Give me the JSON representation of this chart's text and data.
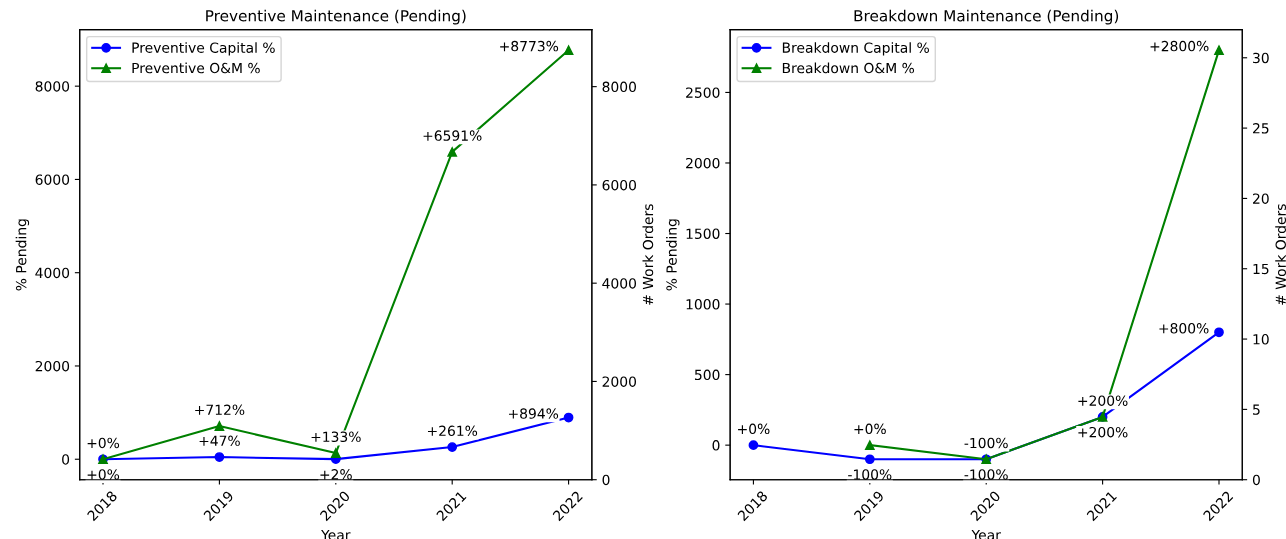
{
  "chart_data": [
    {
      "type": "line",
      "title": "Preventive Maintenance (Pending)",
      "xlabel": "Year",
      "ylabel": "% Pending",
      "y2label": "# Work Orders",
      "categories": [
        "2018",
        "2019",
        "2020",
        "2021",
        "2022"
      ],
      "series": [
        {
          "name": "Preventive Capital %",
          "color": "#0000ff",
          "marker": "circle",
          "values": [
            0,
            47,
            2,
            261,
            894
          ],
          "value_labels": [
            "+0%",
            "+47%",
            "+2%",
            "+261%",
            "+894%"
          ]
        },
        {
          "name": "Preventive O&M %",
          "color": "#008000",
          "marker": "triangle",
          "values": [
            0,
            712,
            133,
            6591,
            8773
          ],
          "value_labels": [
            "+0%",
            "+712%",
            "+133%",
            "+6591%",
            "+8773%"
          ]
        }
      ],
      "ylim": [
        -439,
        9212
      ],
      "yticks": [
        0,
        2000,
        4000,
        6000,
        8000
      ],
      "y2lim": [
        0,
        9160
      ],
      "y2ticks": [
        0,
        2000,
        4000,
        6000,
        8000
      ],
      "legend": "top left",
      "grid": false,
      "line_style": "solid"
    },
    {
      "type": "line",
      "title": "Breakdown Maintenance (Pending)",
      "xlabel": "Year",
      "ylabel": "% Pending",
      "y2label": "# Work Orders",
      "categories": [
        "2018",
        "2019",
        "2020",
        "2021",
        "2022"
      ],
      "series": [
        {
          "name": "Breakdown Capital %",
          "color": "#0000ff",
          "marker": "circle",
          "values": [
            0,
            -100,
            -100,
            200,
            800
          ],
          "value_labels": [
            "+0%",
            "-100%",
            "-100%",
            "+200%",
            "+800%"
          ]
        },
        {
          "name": "Breakdown O&M %",
          "color": "#008000",
          "marker": "triangle",
          "values": [
            null,
            0,
            -100,
            200,
            2800
          ],
          "value_labels": [
            null,
            "+0%",
            "-100%",
            "+200%",
            "+2800%"
          ]
        }
      ],
      "ylim": [
        -245,
        2945
      ],
      "yticks": [
        0,
        500,
        1000,
        1500,
        2000,
        2500
      ],
      "y2lim": [
        0,
        32
      ],
      "y2ticks": [
        0,
        5,
        10,
        15,
        20,
        25,
        30
      ],
      "legend": "top left",
      "grid": false,
      "line_style": "solid"
    }
  ]
}
